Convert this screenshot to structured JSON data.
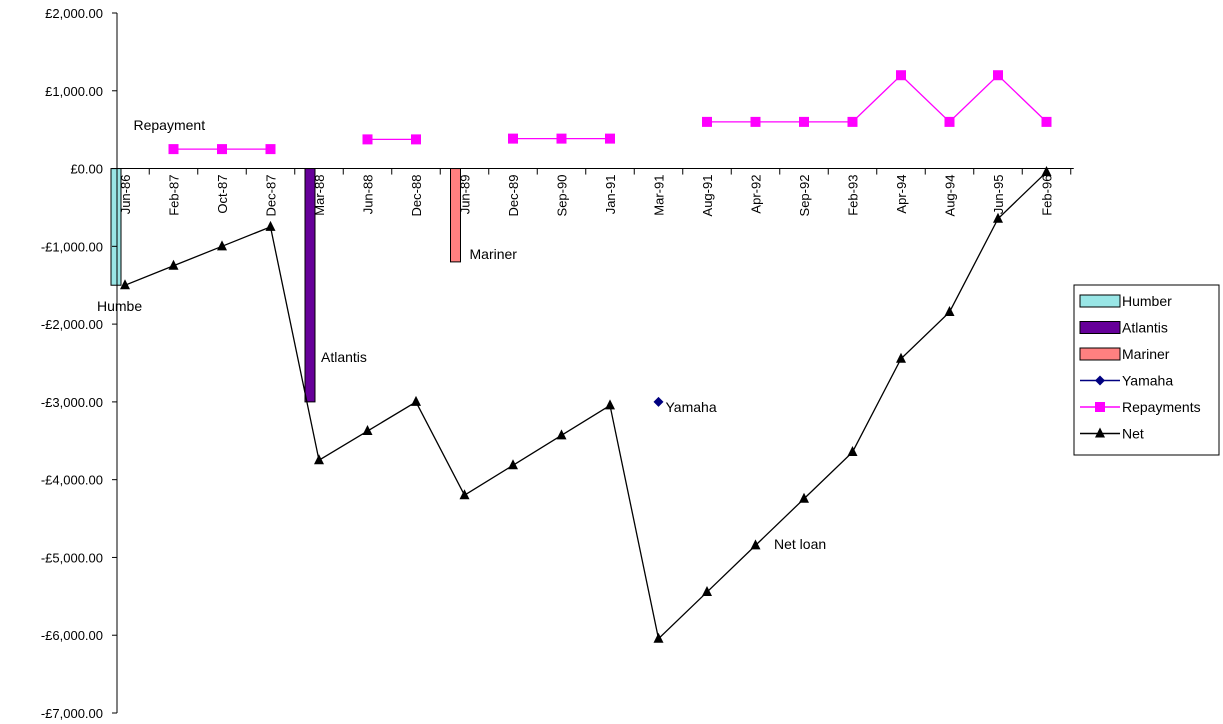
{
  "chart_data": {
    "type": "line",
    "title": "",
    "xlabel": "",
    "ylabel": "",
    "ylim": [
      -7000,
      2000
    ],
    "y_tick_labels": [
      "£2,000.00",
      "£1,000.00",
      "£0.00",
      "-£1,000.00",
      "-£2,000.00",
      "-£3,000.00",
      "-£4,000.00",
      "-£5,000.00",
      "-£6,000.00",
      "-£7,000.00"
    ],
    "y_tick_values": [
      2000,
      1000,
      0,
      -1000,
      -2000,
      -3000,
      -4000,
      -5000,
      -6000,
      -7000
    ],
    "categories": [
      "Jun-86",
      "Feb-87",
      "Oct-87",
      "Dec-87",
      "Mar-88",
      "Jun-88",
      "Dec-88",
      "Jun-89",
      "Dec-89",
      "Sep-90",
      "Jan-91",
      "Mar-91",
      "Aug-91",
      "Apr-92",
      "Sep-92",
      "Feb-93",
      "Apr-94",
      "Aug-94",
      "Jun-95",
      "Feb-96"
    ],
    "grid": false,
    "legend_position": "right",
    "series": [
      {
        "name": "Humber",
        "type": "bar",
        "color": "#99E6E6",
        "values": [
          -1500,
          null,
          null,
          null,
          null,
          null,
          null,
          null,
          null,
          null,
          null,
          null,
          null,
          null,
          null,
          null,
          null,
          null,
          null,
          null
        ]
      },
      {
        "name": "Atlantis",
        "type": "bar",
        "color": "#660099",
        "values": [
          null,
          null,
          null,
          null,
          -3000,
          null,
          null,
          null,
          null,
          null,
          null,
          null,
          null,
          null,
          null,
          null,
          null,
          null,
          null,
          null
        ]
      },
      {
        "name": "Mariner",
        "type": "bar",
        "color": "#FF8080",
        "values": [
          null,
          null,
          null,
          null,
          null,
          null,
          null,
          -1200,
          null,
          null,
          null,
          null,
          null,
          null,
          null,
          null,
          null,
          null,
          null,
          null
        ]
      },
      {
        "name": "Yamaha",
        "type": "line",
        "color": "#000080",
        "marker": "diamond",
        "values": [
          null,
          null,
          null,
          null,
          null,
          null,
          null,
          null,
          null,
          null,
          null,
          -3000,
          null,
          null,
          null,
          null,
          null,
          null,
          null,
          null
        ]
      },
      {
        "name": "Repayments",
        "type": "line",
        "color": "#FF00FF",
        "marker": "square",
        "values": [
          null,
          250,
          250,
          250,
          null,
          375,
          375,
          null,
          385,
          385,
          385,
          null,
          600,
          600,
          600,
          600,
          1200,
          600,
          1200,
          600
        ]
      },
      {
        "name": "Net",
        "type": "line",
        "color": "#000000",
        "marker": "triangle",
        "values": [
          -1500,
          -1250,
          -1000,
          -750,
          -3750,
          -3375,
          -3000,
          -4200,
          -3815,
          -3430,
          -3045,
          -6045,
          -5445,
          -4845,
          -4245,
          -3645,
          -2445,
          -1845,
          -645,
          -45
        ]
      }
    ],
    "annotations": [
      {
        "text": "Repayment",
        "series": "Repayments",
        "category": "Feb-87"
      },
      {
        "text": "Humbe",
        "series": "Humber",
        "category": "Jun-86"
      },
      {
        "text": "Atlantis",
        "series": "Atlantis",
        "category": "Mar-88"
      },
      {
        "text": "Mariner",
        "series": "Mariner",
        "category": "Jun-89"
      },
      {
        "text": "Yamaha",
        "series": "Yamaha",
        "category": "Mar-91"
      },
      {
        "text": "Net loan",
        "series": "Net",
        "category": "Sep-92"
      }
    ]
  }
}
